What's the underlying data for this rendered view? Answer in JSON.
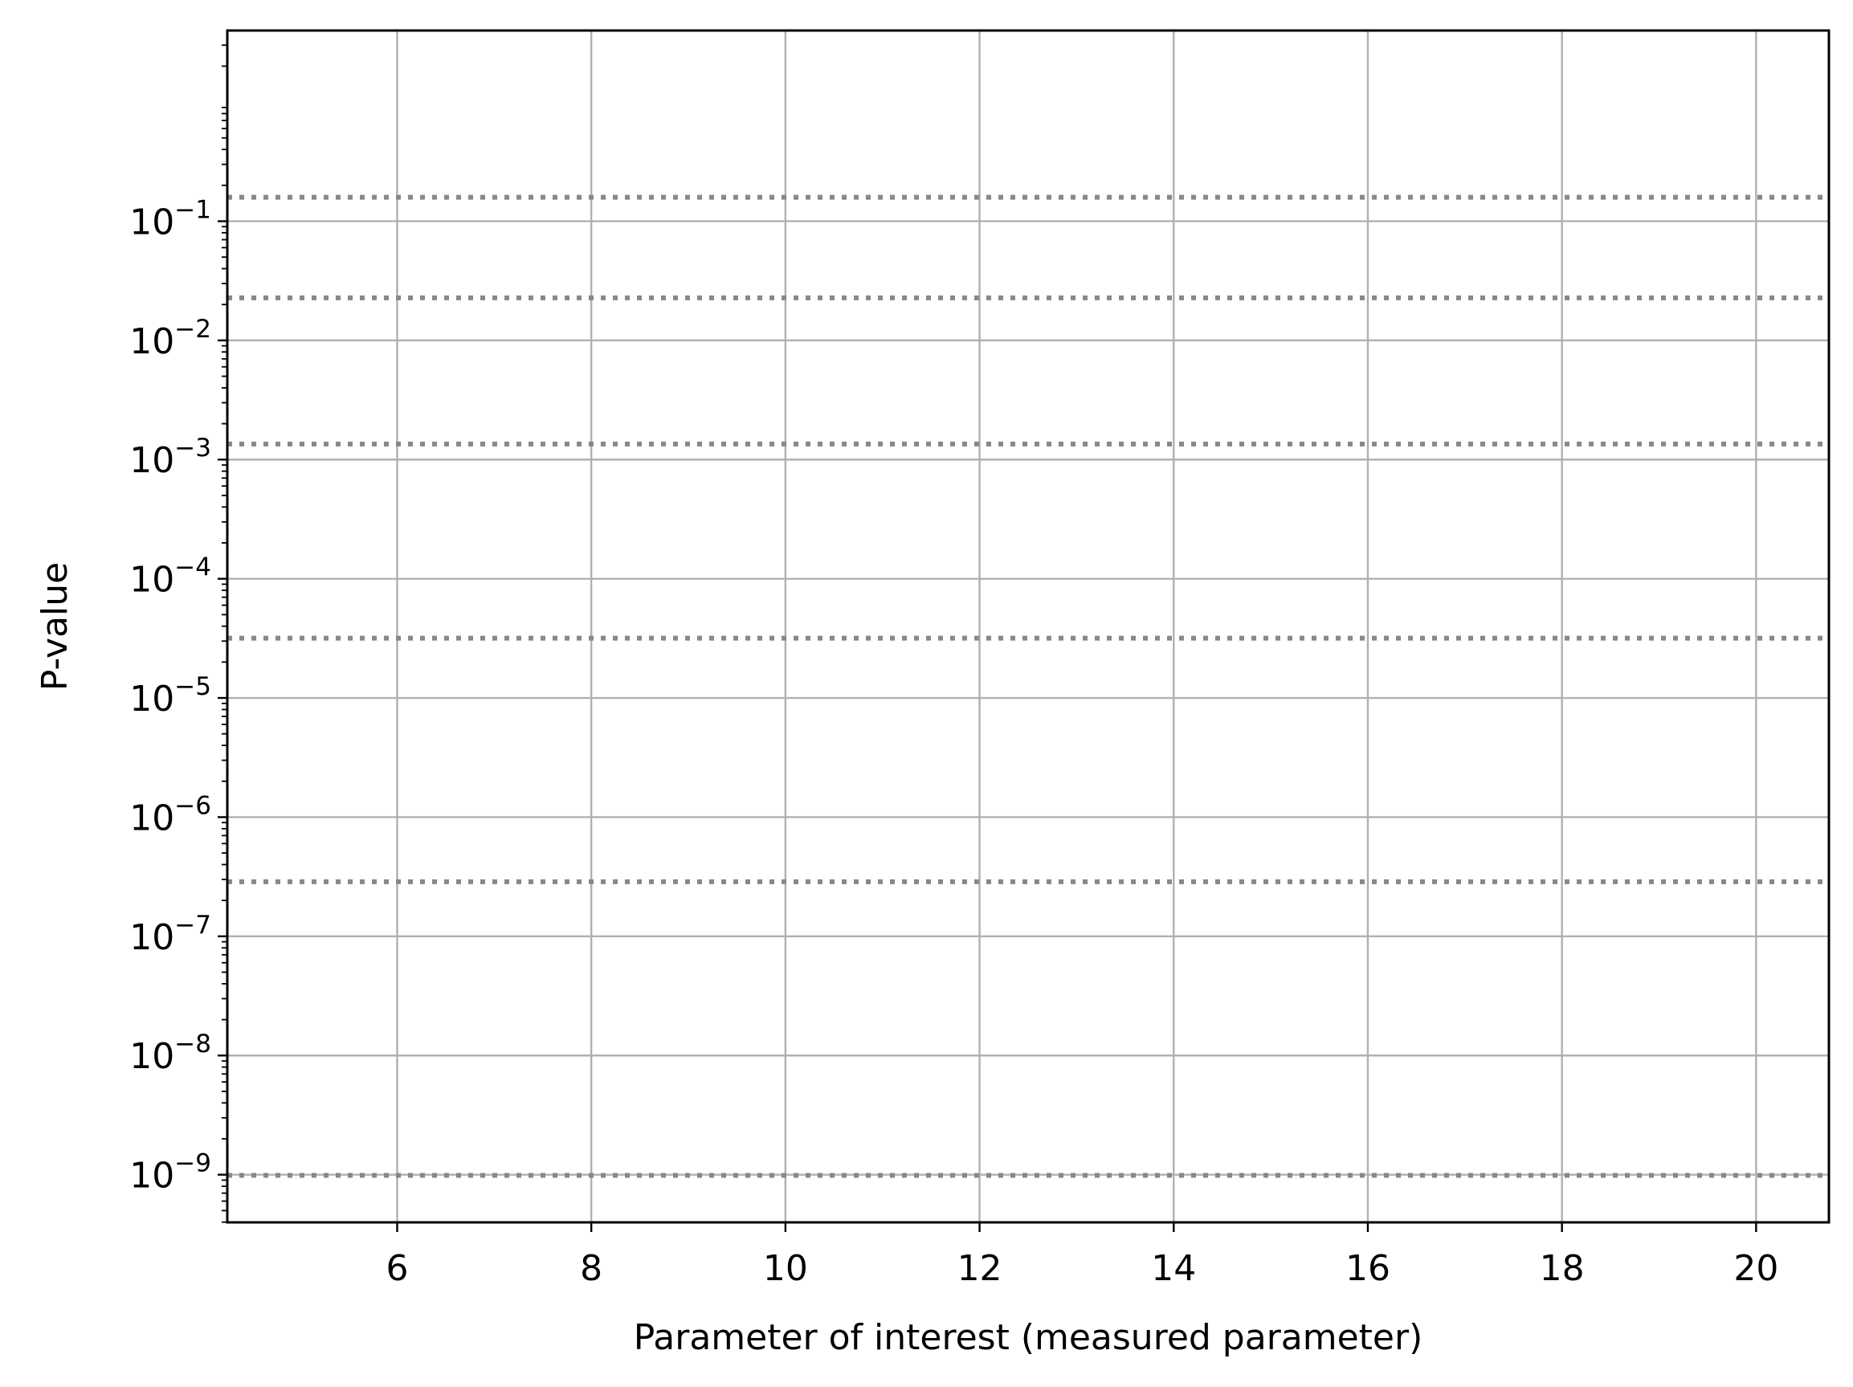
{
  "chart_data": {
    "type": "line",
    "title": "",
    "xlabel": "Parameter of interest (measured parameter)",
    "ylabel": "P-value",
    "xlim": [
      4.25,
      20.75
    ],
    "ylim_exponent": [
      -9.4,
      0.6
    ],
    "y_scale": "log",
    "grid": true,
    "x_ticks": [
      6,
      8,
      10,
      12,
      14,
      16,
      18,
      20
    ],
    "x_tick_labels": [
      "6",
      "8",
      "10",
      "12",
      "14",
      "16",
      "18",
      "20"
    ],
    "y_ticks": [
      {
        "base": "10",
        "exp": "−1",
        "value": 0.1
      },
      {
        "base": "10",
        "exp": "−2",
        "value": 0.01
      },
      {
        "base": "10",
        "exp": "−3",
        "value": 0.001
      },
      {
        "base": "10",
        "exp": "−4",
        "value": 0.0001
      },
      {
        "base": "10",
        "exp": "−5",
        "value": 1e-05
      },
      {
        "base": "10",
        "exp": "−6",
        "value": 1e-06
      },
      {
        "base": "10",
        "exp": "−7",
        "value": 1e-07
      },
      {
        "base": "10",
        "exp": "−8",
        "value": 1e-08
      },
      {
        "base": "10",
        "exp": "−9",
        "value": 1e-09
      }
    ],
    "reference_lines": {
      "style": "dotted",
      "color": "#888888",
      "values": [
        0.1587,
        0.02275,
        0.00135,
        3.17e-05,
        2.87e-07,
        9.87e-10
      ]
    },
    "series": []
  }
}
